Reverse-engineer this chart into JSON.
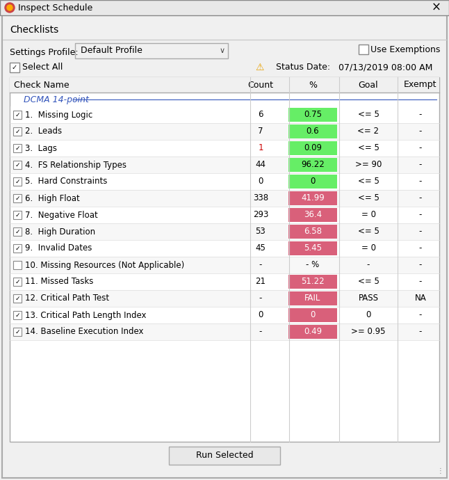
{
  "title": "Inspect Schedule",
  "subtitle": "Checklists",
  "settings_label": "Settings Profile:",
  "settings_value": "Default Profile",
  "use_exemptions": "Use Exemptions",
  "select_all": "Select All",
  "status_date_label": "Status Date:",
  "status_date_value": "07/13/2019 08:00 AM",
  "col_headers": [
    "Check Name",
    "Count",
    "%",
    "Goal",
    "Exempt"
  ],
  "section_label": "DCMA 14-point",
  "rows": [
    {
      "checked": true,
      "name": "1.  Missing Logic",
      "count": "6",
      "pct": "0.75",
      "pct_color": "#66ee66",
      "pct_text_color": "#000000",
      "goal": "<= 5",
      "exempt": "-"
    },
    {
      "checked": true,
      "name": "2.  Leads",
      "count": "7",
      "pct": "0.6",
      "pct_color": "#66ee66",
      "pct_text_color": "#000000",
      "goal": "<= 2",
      "exempt": "-"
    },
    {
      "checked": true,
      "name": "3.  Lags",
      "count": "1",
      "pct": "0.09",
      "pct_color": "#66ee66",
      "pct_text_color": "#000000",
      "goal": "<= 5",
      "exempt": "-",
      "count_red": true
    },
    {
      "checked": true,
      "name": "4.  FS Relationship Types",
      "count": "44",
      "pct": "96.22",
      "pct_color": "#66ee66",
      "pct_text_color": "#000000",
      "goal": ">= 90",
      "exempt": "-"
    },
    {
      "checked": true,
      "name": "5.  Hard Constraints",
      "count": "0",
      "pct": "0",
      "pct_color": "#66ee66",
      "pct_text_color": "#000000",
      "goal": "<= 5",
      "exempt": "-"
    },
    {
      "checked": true,
      "name": "6.  High Float",
      "count": "338",
      "pct": "41.99",
      "pct_color": "#d9607a",
      "pct_text_color": "#ffffff",
      "goal": "<= 5",
      "exempt": "-"
    },
    {
      "checked": true,
      "name": "7.  Negative Float",
      "count": "293",
      "pct": "36.4",
      "pct_color": "#d9607a",
      "pct_text_color": "#ffffff",
      "goal": "= 0",
      "exempt": "-"
    },
    {
      "checked": true,
      "name": "8.  High Duration",
      "count": "53",
      "pct": "6.58",
      "pct_color": "#d9607a",
      "pct_text_color": "#ffffff",
      "goal": "<= 5",
      "exempt": "-"
    },
    {
      "checked": true,
      "name": "9.  Invalid Dates",
      "count": "45",
      "pct": "5.45",
      "pct_color": "#d9607a",
      "pct_text_color": "#ffffff",
      "goal": "= 0",
      "exempt": "-"
    },
    {
      "checked": false,
      "name": "10. Missing Resources (Not Applicable)",
      "count": "-",
      "pct": "- %",
      "pct_color": null,
      "pct_text_color": "#000000",
      "goal": "-",
      "exempt": "-"
    },
    {
      "checked": true,
      "name": "11. Missed Tasks",
      "count": "21",
      "pct": "51.22",
      "pct_color": "#d9607a",
      "pct_text_color": "#ffffff",
      "goal": "<= 5",
      "exempt": "-"
    },
    {
      "checked": true,
      "name": "12. Critical Path Test",
      "count": "-",
      "pct": "FAIL",
      "pct_color": "#d9607a",
      "pct_text_color": "#ffffff",
      "goal": "PASS",
      "exempt": "NA"
    },
    {
      "checked": true,
      "name": "13. Critical Path Length Index",
      "count": "0",
      "pct": "0",
      "pct_color": "#d9607a",
      "pct_text_color": "#ffffff",
      "goal": "0",
      "exempt": "-"
    },
    {
      "checked": true,
      "name": "14. Baseline Execution Index",
      "count": "-",
      "pct": "0.49",
      "pct_color": "#d9607a",
      "pct_text_color": "#ffffff",
      "goal": ">= 0.95",
      "exempt": "-"
    }
  ],
  "button_label": "Run Selected",
  "bg_color": "#f0f0f0",
  "table_bg": "#ffffff",
  "border_color": "#aaaaaa",
  "header_bg": "#f0f0f0"
}
